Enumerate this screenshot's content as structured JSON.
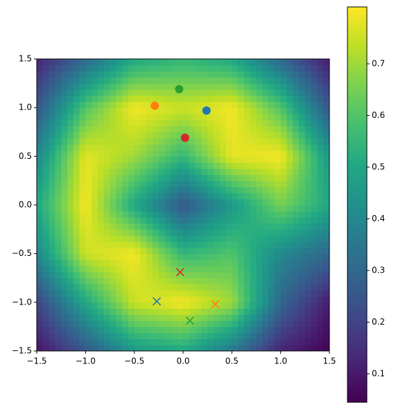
{
  "chart_data": {
    "type": "heatmap",
    "xlim": [
      -1.5,
      1.5
    ],
    "ylim": [
      -1.5,
      1.5
    ],
    "xticks": [
      {
        "value": -1.5,
        "label": "−1.5"
      },
      {
        "value": -1,
        "label": "−1.0"
      },
      {
        "value": -0.5,
        "label": "−0.5"
      },
      {
        "value": 0,
        "label": "0.0"
      },
      0.5,
      {
        "value": 1,
        "label": "1.0"
      },
      1.5
    ],
    "yticks": [
      {
        "value": -1.5,
        "label": "−1.5"
      },
      {
        "value": -1,
        "label": "−1.0"
      },
      {
        "value": -0.5,
        "label": "−0.5"
      },
      {
        "value": 0,
        "label": "0.0"
      },
      0.5,
      {
        "value": 1,
        "label": "1.0"
      },
      1.5
    ],
    "grid_x": [
      -1.5,
      -1,
      -0.5,
      0,
      0.5,
      1,
      1.5
    ],
    "grid_y": [
      -1.5,
      -1,
      -0.5,
      0,
      0.5,
      1,
      1.5
    ],
    "z": [
      [
        0.08,
        0.25,
        0.45,
        0.5,
        0.35,
        0.12,
        0.05
      ],
      [
        0.2,
        0.5,
        0.75,
        0.8,
        0.7,
        0.3,
        0.1
      ],
      [
        0.4,
        0.75,
        0.8,
        0.55,
        0.6,
        0.4,
        0.3
      ],
      [
        0.5,
        0.8,
        0.5,
        0.25,
        0.45,
        0.65,
        0.5
      ],
      [
        0.4,
        0.78,
        0.7,
        0.55,
        0.78,
        0.8,
        0.45
      ],
      [
        0.25,
        0.6,
        0.8,
        0.75,
        0.8,
        0.6,
        0.25
      ],
      [
        0.12,
        0.3,
        0.5,
        0.55,
        0.5,
        0.3,
        0.1
      ]
    ],
    "colormap": "viridis",
    "clim": [
      0.045,
      0.81
    ],
    "cticks": [
      0.1,
      0.2,
      0.3,
      0.4,
      0.5,
      0.6,
      0.7
    ],
    "series": [
      {
        "marker": "o",
        "color": "#1f77b4",
        "x": [
          0.24
        ],
        "y": [
          0.97
        ]
      },
      {
        "marker": "o",
        "color": "#ff7f0e",
        "x": [
          -0.29
        ],
        "y": [
          1.02
        ]
      },
      {
        "marker": "o",
        "color": "#2ca02c",
        "x": [
          -0.04
        ],
        "y": [
          1.19
        ]
      },
      {
        "marker": "o",
        "color": "#d62728",
        "x": [
          0.02
        ],
        "y": [
          0.69
        ]
      },
      {
        "marker": "x",
        "color": "#1f77b4",
        "x": [
          -0.27
        ],
        "y": [
          -0.99
        ]
      },
      {
        "marker": "x",
        "color": "#ff7f0e",
        "x": [
          0.33
        ],
        "y": [
          -1.02
        ]
      },
      {
        "marker": "x",
        "color": "#2ca02c",
        "x": [
          0.07
        ],
        "y": [
          -1.19
        ]
      },
      {
        "marker": "x",
        "color": "#d62728",
        "x": [
          -0.03
        ],
        "y": [
          -0.69
        ]
      }
    ]
  }
}
